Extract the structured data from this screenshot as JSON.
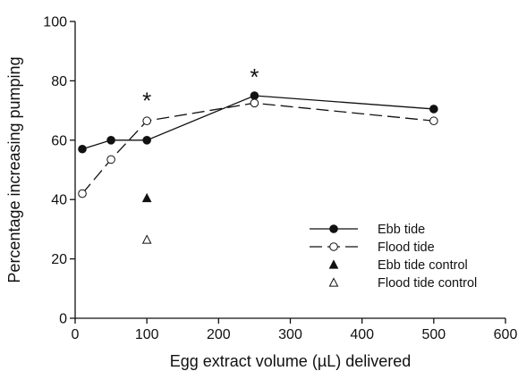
{
  "chart_data": {
    "type": "line",
    "xlabel": "Egg extract volume (µL) delivered",
    "ylabel": "Percentage increasing pumping",
    "xlim": [
      0,
      600
    ],
    "ylim": [
      0,
      100
    ],
    "x_ticks": [
      0,
      100,
      200,
      300,
      400,
      500,
      600
    ],
    "y_ticks": [
      0,
      20,
      40,
      60,
      80,
      100
    ],
    "grid": false,
    "legend_position": "bottom-right",
    "series": [
      {
        "name": "Ebb tide",
        "kind": "line",
        "marker": "filled-circle",
        "line_style": "solid",
        "x": [
          10,
          50,
          100,
          250,
          500
        ],
        "y": [
          57,
          60,
          60,
          75,
          70.5
        ]
      },
      {
        "name": "Flood tide",
        "kind": "line",
        "marker": "open-circle",
        "line_style": "dashed",
        "x": [
          10,
          50,
          100,
          250,
          500
        ],
        "y": [
          42,
          53.5,
          66.5,
          72.5,
          66.5
        ]
      },
      {
        "name": "Ebb tide control",
        "kind": "point",
        "marker": "filled-triangle",
        "x": [
          100
        ],
        "y": [
          40.5
        ]
      },
      {
        "name": "Flood tide control",
        "kind": "point",
        "marker": "open-triangle",
        "x": [
          100
        ],
        "y": [
          26.5
        ]
      }
    ],
    "annotations": [
      {
        "text": "*",
        "x": 100,
        "y": 74.5
      },
      {
        "text": "*",
        "x": 250,
        "y": 82.5
      }
    ],
    "colors": {
      "line": "#111111",
      "open_fill": "#ffffff"
    }
  }
}
